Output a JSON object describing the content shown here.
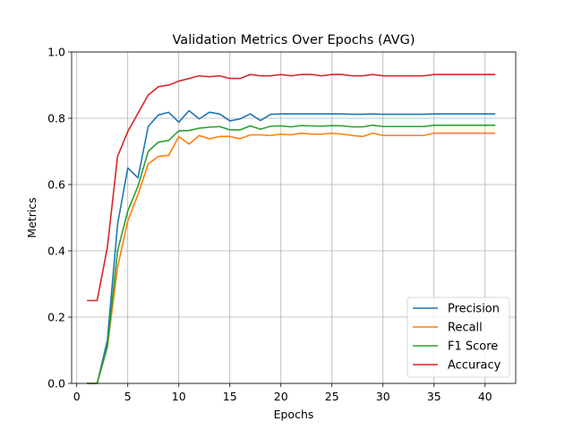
{
  "chart_data": {
    "type": "line",
    "title": "Validation Metrics Over Epochs (AVG)",
    "xlabel": "Epochs",
    "ylabel": "Metrics",
    "xlim": [
      -0.5,
      43
    ],
    "ylim": [
      0.0,
      1.0
    ],
    "xticks": [
      0,
      5,
      10,
      15,
      20,
      25,
      30,
      35,
      40
    ],
    "yticks": [
      0.0,
      0.2,
      0.4,
      0.6,
      0.8,
      1.0
    ],
    "xtick_labels": [
      "0",
      "5",
      "10",
      "15",
      "20",
      "25",
      "30",
      "35",
      "40"
    ],
    "ytick_labels": [
      "0.0",
      "0.2",
      "0.4",
      "0.6",
      "0.8",
      "1.0"
    ],
    "grid": true,
    "legend_position": "lower-right",
    "x": [
      1,
      2,
      3,
      4,
      5,
      6,
      7,
      8,
      9,
      10,
      11,
      12,
      13,
      14,
      15,
      16,
      17,
      18,
      19,
      20,
      21,
      22,
      23,
      24,
      25,
      26,
      27,
      28,
      29,
      30,
      31,
      32,
      33,
      34,
      35,
      36,
      37,
      38,
      39,
      40,
      41
    ],
    "series": [
      {
        "name": "Precision",
        "color": "#1f77b4",
        "values": [
          0.0,
          0.0,
          0.13,
          0.48,
          0.65,
          0.62,
          0.775,
          0.81,
          0.818,
          0.788,
          0.823,
          0.798,
          0.818,
          0.813,
          0.792,
          0.798,
          0.813,
          0.793,
          0.812,
          0.813,
          0.813,
          0.813,
          0.813,
          0.813,
          0.813,
          0.813,
          0.812,
          0.812,
          0.813,
          0.812,
          0.812,
          0.812,
          0.812,
          0.812,
          0.813,
          0.813,
          0.813,
          0.813,
          0.813,
          0.813,
          0.813
        ]
      },
      {
        "name": "Recall",
        "color": "#ff7f0e",
        "values": [
          0.0,
          0.0,
          0.11,
          0.35,
          0.49,
          0.57,
          0.662,
          0.685,
          0.688,
          0.745,
          0.722,
          0.748,
          0.738,
          0.745,
          0.745,
          0.738,
          0.75,
          0.75,
          0.748,
          0.752,
          0.75,
          0.755,
          0.752,
          0.752,
          0.755,
          0.752,
          0.748,
          0.745,
          0.755,
          0.748,
          0.748,
          0.748,
          0.748,
          0.748,
          0.755,
          0.755,
          0.755,
          0.755,
          0.755,
          0.755,
          0.755
        ]
      },
      {
        "name": "F1 Score",
        "color": "#2ca02c",
        "values": [
          0.0,
          0.0,
          0.11,
          0.4,
          0.52,
          0.595,
          0.7,
          0.728,
          0.733,
          0.762,
          0.763,
          0.77,
          0.773,
          0.775,
          0.765,
          0.765,
          0.777,
          0.767,
          0.776,
          0.777,
          0.774,
          0.778,
          0.777,
          0.776,
          0.778,
          0.777,
          0.774,
          0.774,
          0.779,
          0.775,
          0.775,
          0.775,
          0.775,
          0.775,
          0.779,
          0.779,
          0.779,
          0.779,
          0.779,
          0.779,
          0.779
        ]
      },
      {
        "name": "Accuracy",
        "color": "#d62728",
        "values": [
          0.25,
          0.25,
          0.41,
          0.685,
          0.76,
          0.815,
          0.87,
          0.895,
          0.9,
          0.912,
          0.92,
          0.928,
          0.925,
          0.928,
          0.92,
          0.92,
          0.932,
          0.928,
          0.928,
          0.932,
          0.928,
          0.932,
          0.932,
          0.928,
          0.932,
          0.932,
          0.928,
          0.928,
          0.932,
          0.928,
          0.928,
          0.928,
          0.928,
          0.928,
          0.932,
          0.932,
          0.932,
          0.932,
          0.932,
          0.932,
          0.932
        ]
      }
    ]
  }
}
